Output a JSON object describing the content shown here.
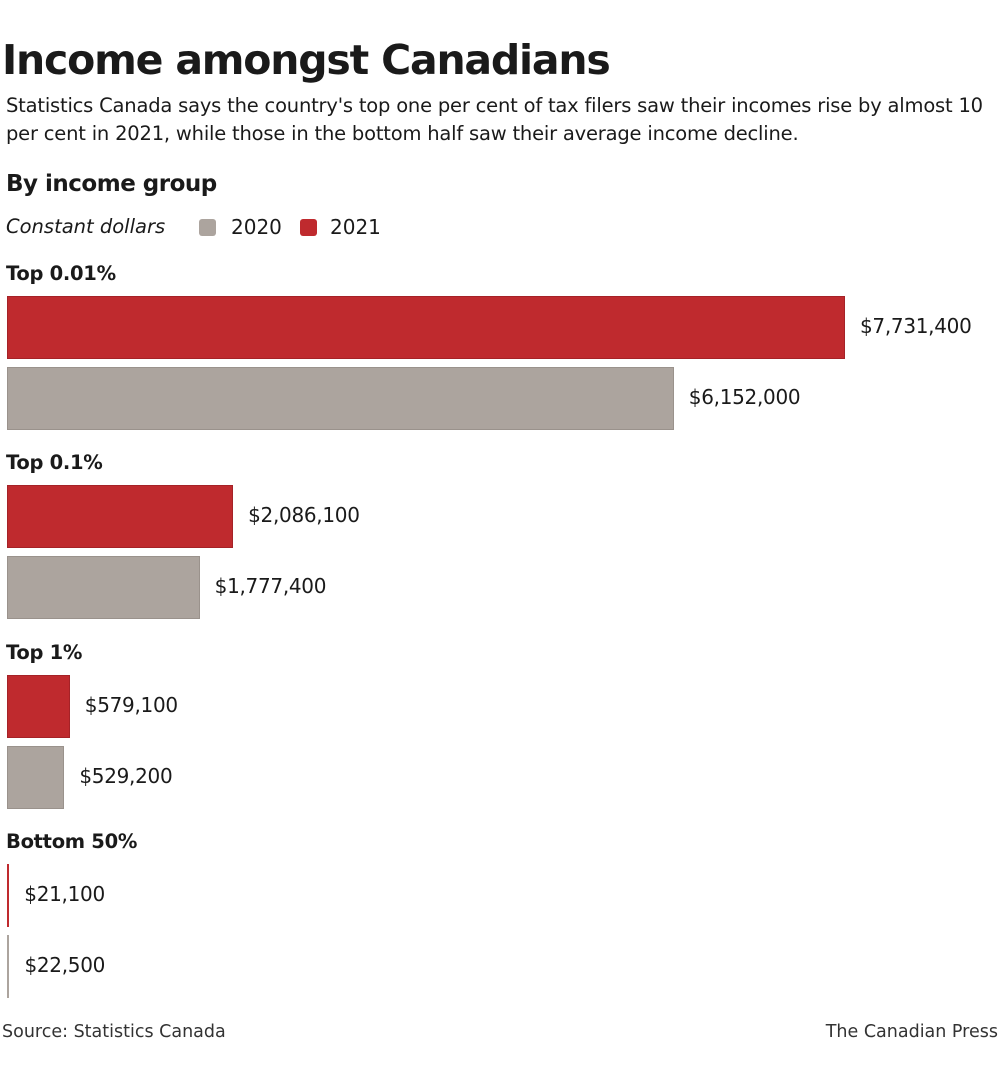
{
  "title": "Income amongst Canadians",
  "subtitle": "Statistics Canada says the country's top one per cent of tax filers saw their incomes rise by almost 10 per cent in 2021, while those in the bottom half saw their average income decline.",
  "section": "By income group",
  "unit_label": "Constant dollars",
  "footer": {
    "source": "Source: Statistics Canada",
    "credit": "The Canadian Press"
  },
  "chart_data": {
    "type": "bar",
    "orientation": "horizontal",
    "categories": [
      "Top 0.01%",
      "Top 0.1%",
      "Top 1%",
      "Bottom 50%"
    ],
    "series": [
      {
        "name": "2021",
        "color": "#bf2a2e",
        "values": [
          7731400,
          2086100,
          579100,
          21100
        ],
        "labels": [
          "$7,731,400",
          "$2,086,100",
          "$579,100",
          "$21,100"
        ]
      },
      {
        "name": "2020",
        "color": "#aca49e",
        "values": [
          6152000,
          1777400,
          529200,
          22500
        ],
        "labels": [
          "$6,152,000",
          "$1,777,400",
          "$529,200",
          "$22,500"
        ]
      }
    ],
    "legend": {
      "placement": "top-left",
      "order": [
        "2020",
        "2021"
      ]
    },
    "grid": false,
    "axes_shown": false
  }
}
